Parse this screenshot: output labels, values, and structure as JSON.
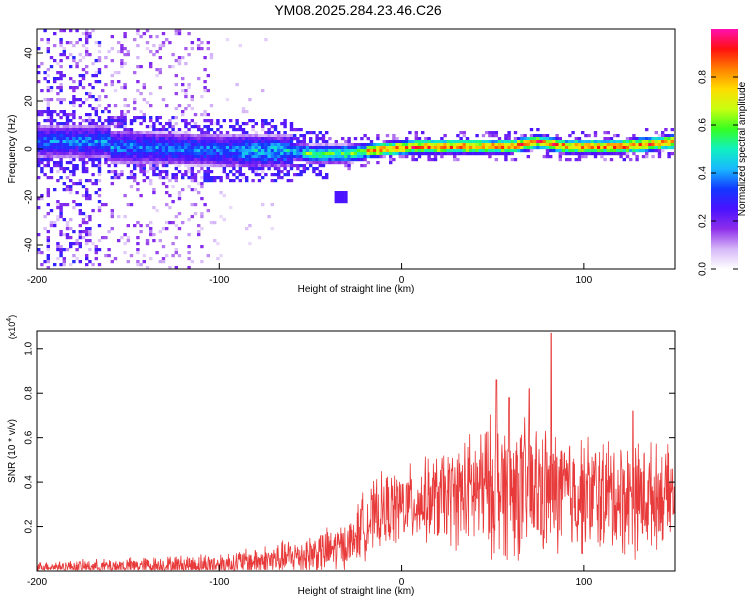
{
  "title": "YM08.2025.284.23.46.C26",
  "chart_data": [
    {
      "type": "heatmap",
      "name": "spectrogram",
      "xlabel": "Height of straight line (km)",
      "ylabel": "Frequency (Hz)",
      "xlim": [
        -200,
        150
      ],
      "ylim": [
        -50,
        50
      ],
      "xticks": [
        "-200",
        "-100",
        "0",
        "100"
      ],
      "xtick_values": [
        -200,
        -100,
        0,
        100
      ],
      "yticks": [
        "-40",
        "-20",
        "0",
        "20",
        "40"
      ],
      "ytick_values": [
        -40,
        -20,
        0,
        20,
        40
      ],
      "colorbar": {
        "label": "Normalized spectral amplitude",
        "range": [
          0,
          1
        ],
        "ticks": [
          "0.0",
          "0.2",
          "0.4",
          "0.6",
          "0.8"
        ],
        "tick_values": [
          0.0,
          0.2,
          0.4,
          0.6,
          0.8
        ],
        "colormap": [
          "#ffffff",
          "#d6b8f8",
          "#8e2fea",
          "#4a12ff",
          "#1238ff",
          "#19b8ff",
          "#10f0c0",
          "#36ff20",
          "#c8ff10",
          "#ffdc00",
          "#ff8000",
          "#ff1010",
          "#ff10b0"
        ]
      },
      "ridge_center_hz": [
        {
          "x": -160,
          "y": 1
        },
        {
          "x": -120,
          "y": 0
        },
        {
          "x": -80,
          "y": -1
        },
        {
          "x": -60,
          "y": -1
        },
        {
          "x": -50,
          "y": -2
        },
        {
          "x": -30,
          "y": -2
        },
        {
          "x": -10,
          "y": 0
        },
        {
          "x": 10,
          "y": 1
        },
        {
          "x": 40,
          "y": 1
        },
        {
          "x": 60,
          "y": 1
        },
        {
          "x": 75,
          "y": 3
        },
        {
          "x": 90,
          "y": 1
        },
        {
          "x": 120,
          "y": 1
        },
        {
          "x": 150,
          "y": 3
        }
      ],
      "noise_region_x": [
        -200,
        -105
      ],
      "weak_region_x": [
        -105,
        -70
      ]
    },
    {
      "type": "line",
      "name": "snr",
      "xlabel": "Height of straight line (km)",
      "ylabel": "SNR (10 * v/v)",
      "y_multiplier": "(x10",
      "y_multiplier_exp": "4",
      "xlim": [
        -200,
        150
      ],
      "ylim": [
        0,
        1.08
      ],
      "xticks": [
        "-200",
        "-100",
        "0",
        "100"
      ],
      "xtick_values": [
        -200,
        -100,
        0,
        100
      ],
      "yticks": [
        "0.2",
        "0.4",
        "0.6",
        "0.8",
        "1.0"
      ],
      "ytick_values": [
        0.2,
        0.4,
        0.6,
        0.8,
        1.0
      ],
      "color": "#e83a3a",
      "envelope": [
        {
          "x": -200,
          "base": 0.02,
          "amp": 0.02
        },
        {
          "x": -170,
          "base": 0.02,
          "amp": 0.03
        },
        {
          "x": -130,
          "base": 0.025,
          "amp": 0.04
        },
        {
          "x": -100,
          "base": 0.03,
          "amp": 0.05
        },
        {
          "x": -70,
          "base": 0.05,
          "amp": 0.07
        },
        {
          "x": -40,
          "base": 0.09,
          "amp": 0.1
        },
        {
          "x": -27,
          "base": 0.13,
          "amp": 0.1
        },
        {
          "x": -22,
          "base": 0.2,
          "amp": 0.14
        },
        {
          "x": -10,
          "base": 0.27,
          "amp": 0.16
        },
        {
          "x": 10,
          "base": 0.31,
          "amp": 0.17
        },
        {
          "x": 30,
          "base": 0.34,
          "amp": 0.22
        },
        {
          "x": 50,
          "base": 0.38,
          "amp": 0.3
        },
        {
          "x": 70,
          "base": 0.36,
          "amp": 0.3
        },
        {
          "x": 90,
          "base": 0.35,
          "amp": 0.26
        },
        {
          "x": 110,
          "base": 0.34,
          "amp": 0.25
        },
        {
          "x": 130,
          "base": 0.33,
          "amp": 0.25
        },
        {
          "x": 150,
          "base": 0.35,
          "amp": 0.18
        }
      ],
      "peaks": [
        {
          "x": 52,
          "y": 0.86
        },
        {
          "x": 59,
          "y": 0.78
        },
        {
          "x": 70,
          "y": 0.82
        },
        {
          "x": 82,
          "y": 1.07
        },
        {
          "x": 127,
          "y": 0.72
        }
      ]
    }
  ]
}
